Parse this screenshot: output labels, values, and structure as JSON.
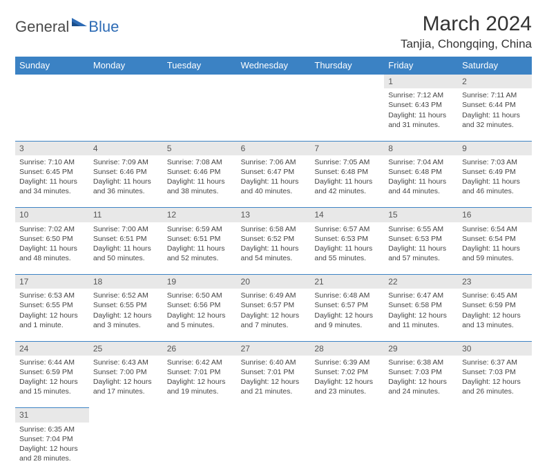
{
  "logo": {
    "dark": "General",
    "blue": "Blue"
  },
  "title": "March 2024",
  "location": "Tanjia, Chongqing, China",
  "colors": {
    "header_bg": "#3b82c4",
    "header_text": "#ffffff",
    "daynum_bg": "#e8e8e8",
    "border": "#3b82c4",
    "body_text": "#444444",
    "logo_blue": "#2d6bb5",
    "logo_dark": "#4a4a4a"
  },
  "day_headers": [
    "Sunday",
    "Monday",
    "Tuesday",
    "Wednesday",
    "Thursday",
    "Friday",
    "Saturday"
  ],
  "weeks": [
    [
      null,
      null,
      null,
      null,
      null,
      {
        "n": "1",
        "sr": "7:12 AM",
        "ss": "6:43 PM",
        "dl": "11 hours and 31 minutes."
      },
      {
        "n": "2",
        "sr": "7:11 AM",
        "ss": "6:44 PM",
        "dl": "11 hours and 32 minutes."
      }
    ],
    [
      {
        "n": "3",
        "sr": "7:10 AM",
        "ss": "6:45 PM",
        "dl": "11 hours and 34 minutes."
      },
      {
        "n": "4",
        "sr": "7:09 AM",
        "ss": "6:46 PM",
        "dl": "11 hours and 36 minutes."
      },
      {
        "n": "5",
        "sr": "7:08 AM",
        "ss": "6:46 PM",
        "dl": "11 hours and 38 minutes."
      },
      {
        "n": "6",
        "sr": "7:06 AM",
        "ss": "6:47 PM",
        "dl": "11 hours and 40 minutes."
      },
      {
        "n": "7",
        "sr": "7:05 AM",
        "ss": "6:48 PM",
        "dl": "11 hours and 42 minutes."
      },
      {
        "n": "8",
        "sr": "7:04 AM",
        "ss": "6:48 PM",
        "dl": "11 hours and 44 minutes."
      },
      {
        "n": "9",
        "sr": "7:03 AM",
        "ss": "6:49 PM",
        "dl": "11 hours and 46 minutes."
      }
    ],
    [
      {
        "n": "10",
        "sr": "7:02 AM",
        "ss": "6:50 PM",
        "dl": "11 hours and 48 minutes."
      },
      {
        "n": "11",
        "sr": "7:00 AM",
        "ss": "6:51 PM",
        "dl": "11 hours and 50 minutes."
      },
      {
        "n": "12",
        "sr": "6:59 AM",
        "ss": "6:51 PM",
        "dl": "11 hours and 52 minutes."
      },
      {
        "n": "13",
        "sr": "6:58 AM",
        "ss": "6:52 PM",
        "dl": "11 hours and 54 minutes."
      },
      {
        "n": "14",
        "sr": "6:57 AM",
        "ss": "6:53 PM",
        "dl": "11 hours and 55 minutes."
      },
      {
        "n": "15",
        "sr": "6:55 AM",
        "ss": "6:53 PM",
        "dl": "11 hours and 57 minutes."
      },
      {
        "n": "16",
        "sr": "6:54 AM",
        "ss": "6:54 PM",
        "dl": "11 hours and 59 minutes."
      }
    ],
    [
      {
        "n": "17",
        "sr": "6:53 AM",
        "ss": "6:55 PM",
        "dl": "12 hours and 1 minute."
      },
      {
        "n": "18",
        "sr": "6:52 AM",
        "ss": "6:55 PM",
        "dl": "12 hours and 3 minutes."
      },
      {
        "n": "19",
        "sr": "6:50 AM",
        "ss": "6:56 PM",
        "dl": "12 hours and 5 minutes."
      },
      {
        "n": "20",
        "sr": "6:49 AM",
        "ss": "6:57 PM",
        "dl": "12 hours and 7 minutes."
      },
      {
        "n": "21",
        "sr": "6:48 AM",
        "ss": "6:57 PM",
        "dl": "12 hours and 9 minutes."
      },
      {
        "n": "22",
        "sr": "6:47 AM",
        "ss": "6:58 PM",
        "dl": "12 hours and 11 minutes."
      },
      {
        "n": "23",
        "sr": "6:45 AM",
        "ss": "6:59 PM",
        "dl": "12 hours and 13 minutes."
      }
    ],
    [
      {
        "n": "24",
        "sr": "6:44 AM",
        "ss": "6:59 PM",
        "dl": "12 hours and 15 minutes."
      },
      {
        "n": "25",
        "sr": "6:43 AM",
        "ss": "7:00 PM",
        "dl": "12 hours and 17 minutes."
      },
      {
        "n": "26",
        "sr": "6:42 AM",
        "ss": "7:01 PM",
        "dl": "12 hours and 19 minutes."
      },
      {
        "n": "27",
        "sr": "6:40 AM",
        "ss": "7:01 PM",
        "dl": "12 hours and 21 minutes."
      },
      {
        "n": "28",
        "sr": "6:39 AM",
        "ss": "7:02 PM",
        "dl": "12 hours and 23 minutes."
      },
      {
        "n": "29",
        "sr": "6:38 AM",
        "ss": "7:03 PM",
        "dl": "12 hours and 24 minutes."
      },
      {
        "n": "30",
        "sr": "6:37 AM",
        "ss": "7:03 PM",
        "dl": "12 hours and 26 minutes."
      }
    ],
    [
      {
        "n": "31",
        "sr": "6:35 AM",
        "ss": "7:04 PM",
        "dl": "12 hours and 28 minutes."
      },
      null,
      null,
      null,
      null,
      null,
      null
    ]
  ],
  "labels": {
    "sunrise": "Sunrise: ",
    "sunset": "Sunset: ",
    "daylight": "Daylight: "
  }
}
